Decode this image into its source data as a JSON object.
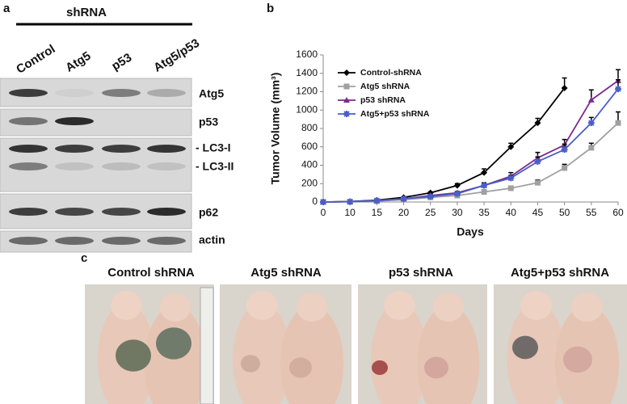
{
  "panel_a": {
    "label": "a",
    "group": "shRNA",
    "lanes": [
      "Control",
      "Atg5",
      "p53",
      "Atg5/p53"
    ],
    "bands": [
      "Atg5",
      "p53",
      "- LC3-I",
      "- LC3-II",
      "p62",
      "actin"
    ]
  },
  "chart_data": {
    "type": "line",
    "panel_label": "b",
    "y_label": "Tumor Volume (mm³)",
    "x_label": "Days",
    "categories": [
      "0",
      "10",
      "15",
      "20",
      "25",
      "30",
      "35",
      "40",
      "45",
      "50",
      "55",
      "60"
    ],
    "series": [
      {
        "name": "Control-shRNA",
        "color": "#000000",
        "marker": "diamond",
        "values": [
          0,
          5,
          20,
          50,
          100,
          180,
          320,
          600,
          860,
          1240,
          null,
          null
        ],
        "errors": [
          0,
          0,
          5,
          5,
          10,
          20,
          40,
          40,
          50,
          110,
          null,
          null
        ]
      },
      {
        "name": "Atg5 shRNA",
        "color": "#a0a0a0",
        "marker": "square",
        "values": [
          0,
          3,
          10,
          25,
          50,
          70,
          110,
          150,
          210,
          370,
          590,
          860
        ],
        "errors": [
          0,
          0,
          3,
          5,
          10,
          10,
          15,
          20,
          30,
          40,
          50,
          120
        ]
      },
      {
        "name": "p53 shRNA",
        "color": "#7b2a8a",
        "marker": "triangle",
        "values": [
          0,
          3,
          15,
          35,
          70,
          100,
          180,
          280,
          480,
          620,
          1110,
          1320
        ],
        "errors": [
          0,
          0,
          5,
          5,
          10,
          15,
          30,
          40,
          60,
          60,
          110,
          120
        ]
      },
      {
        "name": "Atg5+p53 shRNA",
        "color": "#4a5ec8",
        "marker": "star",
        "values": [
          0,
          3,
          15,
          35,
          60,
          90,
          180,
          260,
          440,
          570,
          860,
          1230
        ],
        "errors": [
          0,
          0,
          5,
          5,
          10,
          15,
          20,
          30,
          50,
          60,
          60,
          100
        ]
      }
    ],
    "ylim": [
      0,
      1600
    ],
    "yticks": [
      0,
      200,
      400,
      600,
      800,
      1000,
      1200,
      1400,
      1600
    ],
    "legend": "upper-left"
  },
  "panel_c": {
    "label": "c",
    "groups": [
      "Control shRNA",
      "Atg5 shRNA",
      "p53 shRNA",
      "Atg5+p53 shRNA"
    ]
  }
}
